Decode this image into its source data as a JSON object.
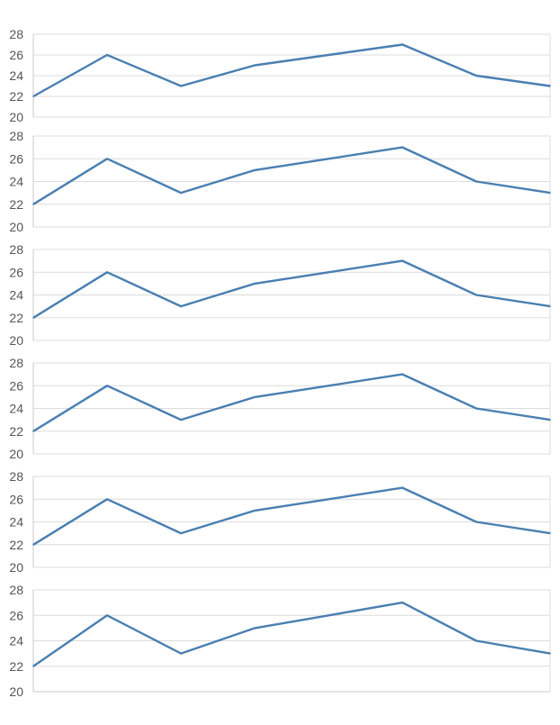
{
  "chart_data": [
    {
      "type": "line",
      "ylim": [
        20,
        28
      ],
      "yticks": [
        20,
        22,
        24,
        26,
        28
      ],
      "grid": true,
      "series": [
        {
          "values": [
            22,
            26,
            23,
            25,
            26,
            27,
            24,
            23
          ]
        }
      ]
    },
    {
      "type": "line",
      "ylim": [
        20,
        28
      ],
      "yticks": [
        20,
        22,
        24,
        26,
        28
      ],
      "grid": true,
      "series": [
        {
          "values": [
            22,
            26,
            23,
            25,
            26,
            27,
            24,
            23
          ]
        }
      ]
    },
    {
      "type": "line",
      "ylim": [
        20,
        28
      ],
      "yticks": [
        20,
        22,
        24,
        26,
        28
      ],
      "grid": true,
      "series": [
        {
          "values": [
            22,
            26,
            23,
            25,
            26,
            27,
            24,
            23
          ]
        }
      ]
    },
    {
      "type": "line",
      "ylim": [
        20,
        28
      ],
      "yticks": [
        20,
        22,
        24,
        26,
        28
      ],
      "grid": true,
      "series": [
        {
          "values": [
            22,
            26,
            23,
            25,
            26,
            27,
            24,
            23
          ]
        }
      ]
    },
    {
      "type": "line",
      "ylim": [
        20,
        28
      ],
      "yticks": [
        20,
        22,
        24,
        26,
        28
      ],
      "grid": true,
      "series": [
        {
          "values": [
            22,
            26,
            23,
            25,
            26,
            27,
            24,
            23
          ]
        }
      ]
    },
    {
      "type": "line",
      "ylim": [
        20,
        28
      ],
      "yticks": [
        20,
        22,
        24,
        26,
        28
      ],
      "grid": true,
      "series": [
        {
          "values": [
            22,
            26,
            23,
            25,
            26,
            27,
            24,
            23
          ]
        }
      ]
    }
  ],
  "colors": {
    "line": "#4a7fb1",
    "grid": "#dcdcdc",
    "axis": "#c8c8c8",
    "tick_text": "#555555"
  }
}
